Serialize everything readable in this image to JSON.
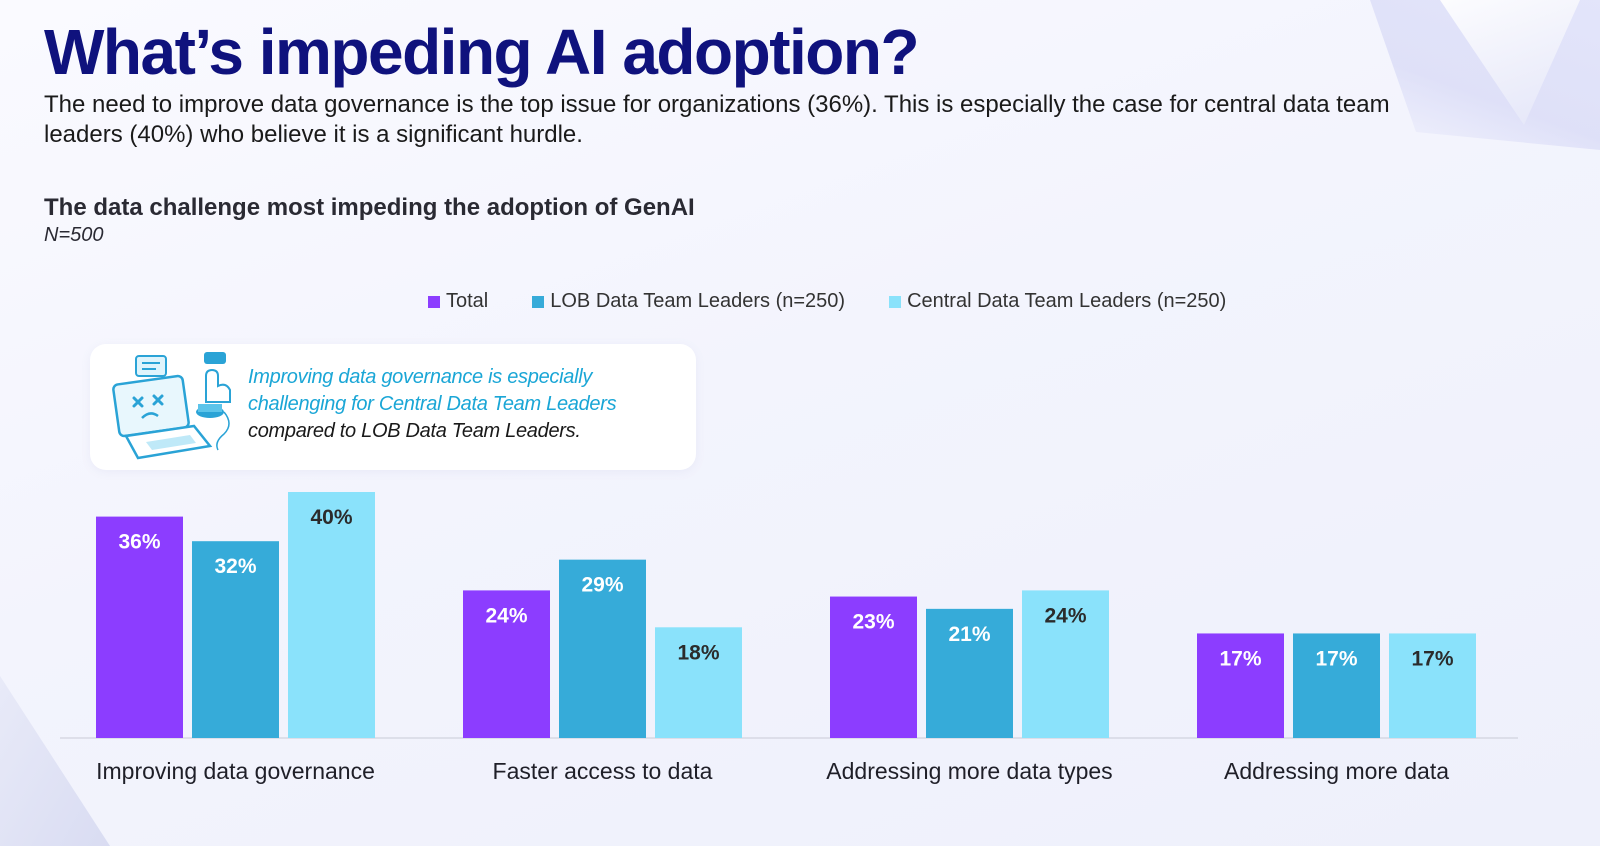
{
  "page": {
    "title": "What’s impeding AI adoption?",
    "subtitle": "The need to improve data governance is the top issue for organizations (36%). This is especially the case for central data team leaders (40%) who believe it is a significant hurdle."
  },
  "callout": {
    "highlight_line1": "Improving data governance is especially",
    "highlight_line2": "challenging for Central Data Team Leaders",
    "rest_line": "compared to LOB Data Team Leaders.",
    "icon": "laptop-error-icon"
  },
  "colors": {
    "title": "#0f127d",
    "highlight": "#1aa6d6"
  },
  "chart_data": {
    "type": "bar",
    "title": "The data challenge most impeding the adoption of GenAI",
    "note": "N=500",
    "xlabel": "",
    "ylabel": "",
    "ylim": [
      0,
      40
    ],
    "legend_position": "top",
    "grid": false,
    "categories": [
      "Improving data governance",
      "Faster access to data",
      "Addressing more data types",
      "Addressing more data"
    ],
    "series": [
      {
        "name": "Total",
        "values": [
          36,
          24,
          23,
          17
        ],
        "labels": [
          "36%",
          "24%",
          "23%",
          "17%"
        ],
        "color": "#8c3dff",
        "label_color": "#ffffff"
      },
      {
        "name": "LOB Data Team Leaders (n=250)",
        "values": [
          32,
          29,
          21,
          17
        ],
        "labels": [
          "32%",
          "29%",
          "21%",
          "17%"
        ],
        "color": "#36abd9",
        "label_color": "#ffffff"
      },
      {
        "name": "Central Data Team Leaders (n=250)",
        "values": [
          40,
          18,
          24,
          17
        ],
        "labels": [
          "40%",
          "18%",
          "24%",
          "17%"
        ],
        "color": "#8ae2fb",
        "label_color": "#2b2b2b"
      }
    ]
  }
}
